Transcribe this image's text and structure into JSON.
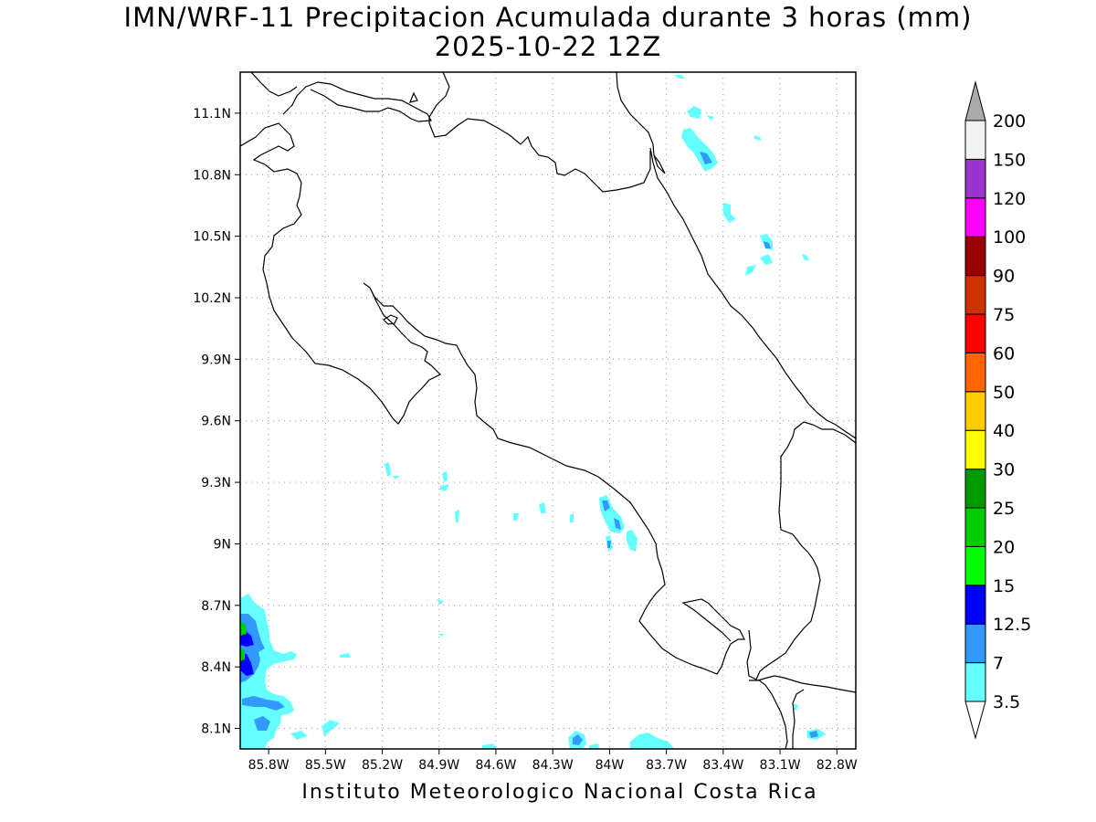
{
  "title_line1": "IMN/WRF-11 Precipitacion Acumulada durante 3 horas (mm)",
  "title_line2": "2025-10-22 12Z",
  "footer": "Instituto Meteorologico Nacional Costa Rica",
  "map": {
    "lat_range": [
      8.0,
      11.3
    ],
    "lon_range": [
      -85.95,
      -82.7
    ],
    "lat_labels": [
      "11.1N",
      "10.8N",
      "10.5N",
      "10.2N",
      "9.9N",
      "9.6N",
      "9.3N",
      "9N",
      "8.7N",
      "8.4N",
      "8.1N"
    ],
    "lat_values": [
      11.1,
      10.8,
      10.5,
      10.2,
      9.9,
      9.6,
      9.3,
      9.0,
      8.7,
      8.4,
      8.1
    ],
    "lon_labels": [
      "85.8W",
      "85.5W",
      "85.2W",
      "84.9W",
      "84.6W",
      "84.3W",
      "84W",
      "83.7W",
      "83.4W",
      "83.1W",
      "82.8W"
    ],
    "lon_values": [
      -85.8,
      -85.5,
      -85.2,
      -84.9,
      -84.6,
      -84.3,
      -84.0,
      -83.7,
      -83.4,
      -83.1,
      -82.8
    ],
    "grid": true
  },
  "legend": {
    "units": "mm",
    "levels": [
      "3.5",
      "7",
      "12.5",
      "15",
      "20",
      "25",
      "30",
      "40",
      "50",
      "60",
      "75",
      "90",
      "100",
      "120",
      "150",
      "200"
    ],
    "colors": [
      "#66ffff",
      "#3399ff",
      "#0000ff",
      "#00ff00",
      "#00cc00",
      "#009900",
      "#ffff00",
      "#ffcc00",
      "#ff6600",
      "#ff0000",
      "#cc3300",
      "#990000",
      "#ff00ff",
      "#9933cc",
      "#f2f2f2"
    ],
    "over_color": "#aaaaaa",
    "under_color": "#ffffff"
  },
  "precip_colors": {
    "light": "#66ffff",
    "moderate": "#3399ff",
    "heavy": "#0000ff",
    "very_heavy": "#00cc00"
  }
}
